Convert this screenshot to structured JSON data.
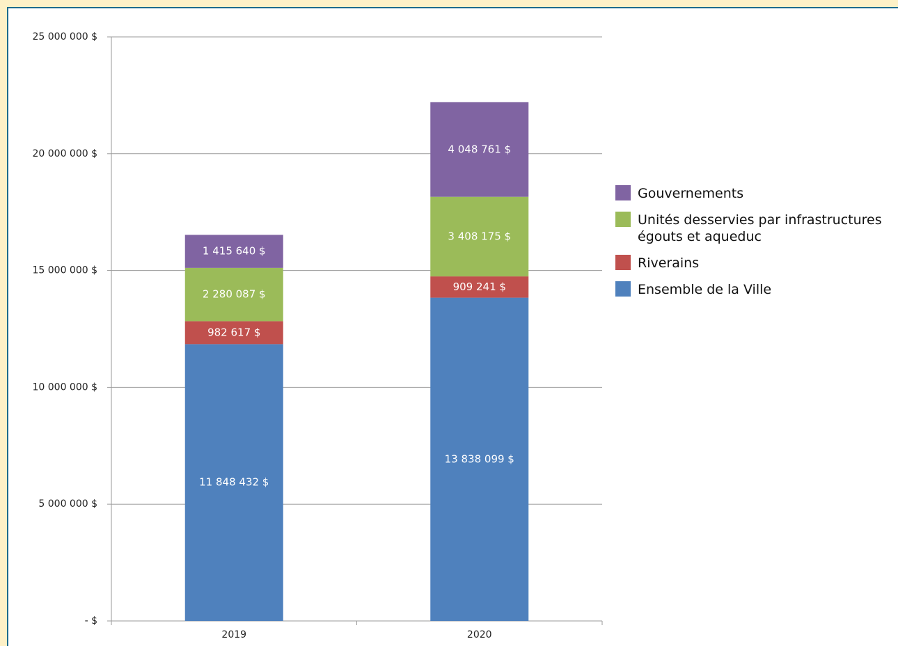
{
  "chart_data": {
    "type": "stacked_bar",
    "categories": [
      "2019",
      "2020"
    ],
    "series": [
      {
        "name": "Ensemble de la Ville",
        "color": "#4f81bd",
        "values": [
          11848432,
          13838099
        ],
        "value_labels": [
          "11 848 432  $",
          "13 838 099  $"
        ]
      },
      {
        "name": "Riverains",
        "color": "#c0504d",
        "values": [
          982617,
          909241
        ],
        "value_labels": [
          "982 617  $",
          "909 241  $"
        ]
      },
      {
        "name": "Unités desservies par infrastructures égouts et aqueduc",
        "color": "#9bbb59",
        "values": [
          2280087,
          3408175
        ],
        "value_labels": [
          "2 280 087  $",
          "3 408 175  $"
        ]
      },
      {
        "name": "Gouvernements",
        "color": "#8064a2",
        "values": [
          1415640,
          4048761
        ],
        "value_labels": [
          "1 415 640  $",
          "4 048 761  $"
        ]
      }
    ],
    "ylim": [
      0,
      25000000
    ],
    "yticks": [
      {
        "value": 0,
        "label": "-  $"
      },
      {
        "value": 5000000,
        "label": "5 000 000  $"
      },
      {
        "value": 10000000,
        "label": "10 000 000  $"
      },
      {
        "value": 15000000,
        "label": "15 000 000  $"
      },
      {
        "value": 20000000,
        "label": "20 000 000  $"
      },
      {
        "value": 25000000,
        "label": "25 000 000  $"
      }
    ],
    "grid": true,
    "legend": "right"
  }
}
